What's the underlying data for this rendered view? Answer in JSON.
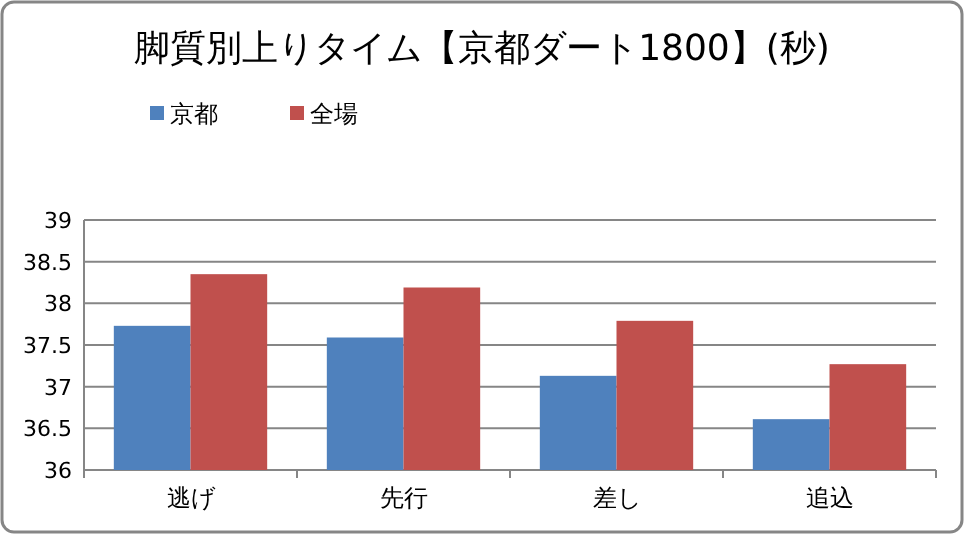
{
  "chart_data": {
    "type": "bar",
    "title": "脚質別上りタイム【京都ダート1800】(秒)",
    "categories": [
      "逃げ",
      "先行",
      "差し",
      "追込"
    ],
    "series": [
      {
        "name": "京都",
        "color": "#4f81bd",
        "values": [
          37.73,
          37.59,
          37.13,
          36.61
        ]
      },
      {
        "name": "全場",
        "color": "#c0504d",
        "values": [
          38.35,
          38.19,
          37.79,
          37.27
        ]
      }
    ],
    "ylim": [
      36,
      39
    ],
    "yticks": [
      36,
      36.5,
      37,
      37.5,
      38,
      38.5,
      39
    ],
    "grid": "y",
    "legend": "top left"
  }
}
